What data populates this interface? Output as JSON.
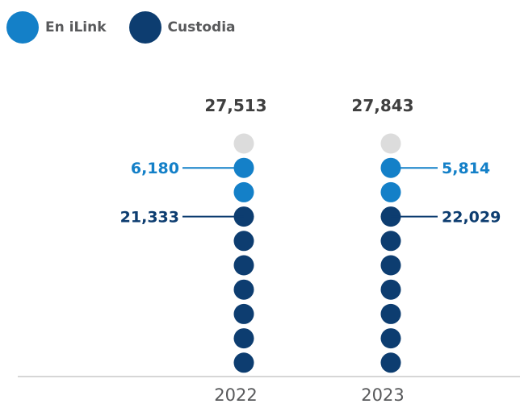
{
  "chart_data": {
    "type": "pictogram",
    "categories": [
      "2022",
      "2023"
    ],
    "totals": [
      "27,513",
      "27,843"
    ],
    "series": [
      {
        "name": "En iLink",
        "labels": [
          "6,180",
          "5,814"
        ],
        "values": [
          6180,
          5814
        ],
        "color": "#1480c8"
      },
      {
        "name": "Custodia",
        "labels": [
          "21,333",
          "22,029"
        ],
        "values": [
          21333,
          22029
        ],
        "color": "#0d3d70"
      }
    ],
    "dot_counts": {
      "other": 1,
      "en_ilink": 2,
      "custodia": 7
    },
    "other_color": "#dcdcdc",
    "total_color": "#3f3f3f"
  }
}
